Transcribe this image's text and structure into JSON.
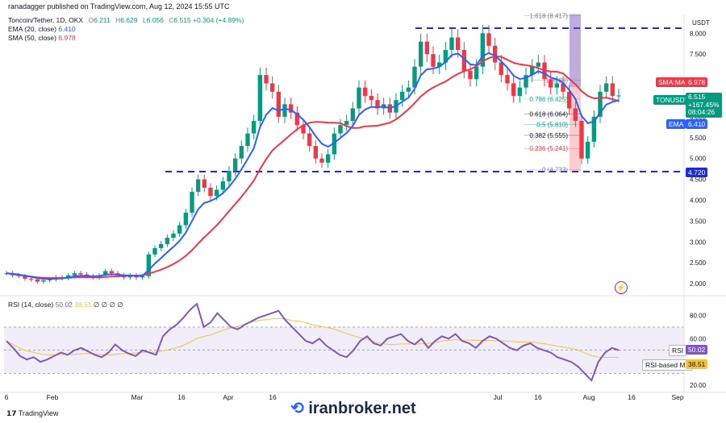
{
  "header": {
    "publisher": "ranadagger published on TradingView.com, Aug 12, 2024 15:55 UTC"
  },
  "legend": {
    "symbol": "Toncoin/Tether, 1D, OKX",
    "o_label": "O",
    "o": "6.211",
    "h_label": "H",
    "h": "6.629",
    "l_label": "L",
    "l": "6.056",
    "c_label": "C",
    "c": "6.515",
    "change": "+0.304 (+4.89%)",
    "ema_label": "EMA (20, close)",
    "ema_value": "6.410",
    "sma_label": "SMA (50, close)",
    "sma_value": "6.978"
  },
  "rsi_legend": {
    "label": "RSI (14, close)",
    "value": "50.02",
    "ma_value": "38.51",
    "rest": "∅ ∅ ∅ ∅"
  },
  "price_axis": {
    "currency": "USDT",
    "ticks": [
      "8.000",
      "7.500",
      "6.500",
      "6.000",
      "5.500",
      "5.000",
      "4.500",
      "4.000",
      "3.500",
      "3.000",
      "2.500",
      "2.000"
    ]
  },
  "rsi_axis": {
    "ticks": [
      "80.00",
      "60.00",
      "20.00"
    ]
  },
  "tags": {
    "sma_name": "SMA:MA",
    "sma_value": "6.978",
    "price_name": "TONUSDT",
    "price_value": "6.515",
    "price_change": "+167.45%",
    "price_timer": "08:04:26",
    "ema_name": "EMA",
    "ema_value": "6.410",
    "support": "4.720",
    "rsi_name": "RSI",
    "rsi_value": "50.02",
    "rsi_ma_name": "RSI-based MA",
    "rsi_ma_value": "38.51"
  },
  "fib_levels": [
    {
      "label": "1.618 (8.417)",
      "price": 8.417,
      "color": "#787b86"
    },
    {
      "label": "1 (6.88)",
      "price": 6.88,
      "color": "#787b86"
    },
    {
      "label": "0.786 (6.425)",
      "price": 6.425,
      "color": "#22ab94"
    },
    {
      "label": "0.618 (6.064)",
      "price": 6.064,
      "color": "#131722"
    },
    {
      "label": "0.5 (5.810)",
      "price": 5.81,
      "color": "#089981"
    },
    {
      "label": "0.382 (5.555)",
      "price": 5.555,
      "color": "#131722"
    },
    {
      "label": "0.236 (5.241)",
      "price": 5.241,
      "color": "#f23645"
    },
    {
      "label": "0 (4.733)",
      "price": 4.733,
      "color": "#787b86"
    }
  ],
  "time_axis": {
    "labels": [
      "6",
      "Feb",
      "Mar",
      "16",
      "Apr",
      "16",
      "Jul",
      "16",
      "Aug",
      "16",
      "Sep"
    ],
    "extra": [
      "16",
      "16"
    ]
  },
  "footer": {
    "tradingview": "TradingView",
    "brand": "iranbroker.net"
  },
  "chart_data": {
    "type": "candlestick",
    "symbol": "TONUSDT",
    "timeframe": "1D",
    "ylim": [
      1.75,
      8.45
    ],
    "horizontal_levels": [
      8.45,
      4.72
    ],
    "close_series": [
      2.25,
      2.2,
      2.18,
      2.12,
      2.1,
      2.05,
      2.08,
      2.1,
      2.15,
      2.13,
      2.2,
      2.25,
      2.22,
      2.18,
      2.15,
      2.2,
      2.3,
      2.25,
      2.2,
      2.15,
      2.2,
      2.15,
      2.18,
      2.7,
      2.85,
      2.95,
      3.1,
      3.2,
      3.4,
      3.7,
      4.2,
      4.5,
      4.3,
      4.1,
      4.25,
      4.45,
      4.7,
      5.0,
      5.3,
      5.6,
      5.9,
      7.0,
      6.8,
      6.6,
      6.0,
      6.3,
      6.1,
      5.8,
      5.6,
      5.3,
      5.0,
      4.9,
      5.1,
      5.6,
      5.8,
      5.9,
      6.2,
      6.7,
      6.5,
      6.4,
      6.2,
      6.3,
      6.1,
      6.4,
      6.6,
      6.7,
      7.2,
      7.8,
      7.5,
      7.2,
      7.3,
      7.6,
      7.9,
      7.6,
      7.1,
      6.9,
      7.2,
      8.0,
      7.7,
      7.3,
      7.0,
      6.8,
      6.5,
      6.7,
      7.0,
      7.2,
      7.3,
      6.9,
      6.7,
      6.8,
      6.6,
      6.2,
      5.9,
      5.0,
      5.4,
      6.0,
      6.6,
      6.8,
      6.5,
      6.51
    ],
    "ema20_last": 6.41,
    "sma50_last": 6.978,
    "rsi": {
      "ylim": [
        15,
        95
      ],
      "overbought": 70,
      "oversold": 30,
      "values": [
        58,
        52,
        45,
        42,
        44,
        40,
        42,
        45,
        48,
        46,
        50,
        52,
        49,
        46,
        44,
        48,
        55,
        50,
        47,
        45,
        50,
        48,
        46,
        62,
        68,
        72,
        78,
        85,
        90,
        70,
        74,
        82,
        76,
        70,
        68,
        72,
        75,
        78,
        80,
        82,
        84,
        76,
        70,
        64,
        58,
        56,
        60,
        54,
        50,
        46,
        44,
        50,
        58,
        62,
        56,
        54,
        60,
        62,
        64,
        58,
        55,
        60,
        52,
        58,
        62,
        60,
        64,
        58,
        56,
        52,
        58,
        62,
        60,
        56,
        52,
        50,
        54,
        56,
        52,
        50,
        48,
        44,
        42,
        40,
        36,
        30,
        24,
        40,
        48,
        52,
        50.02
      ],
      "ma_last": 38.51
    }
  }
}
